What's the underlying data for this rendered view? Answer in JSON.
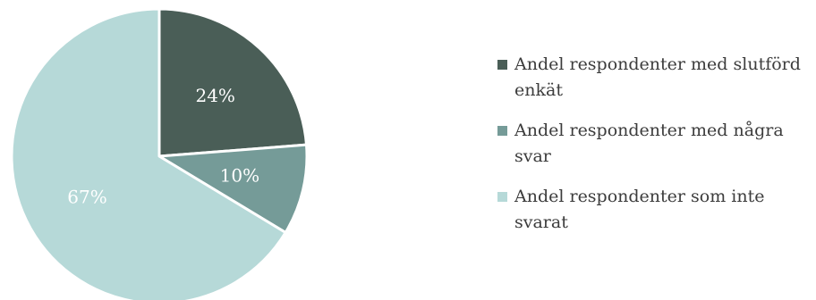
{
  "chart_data": {
    "type": "pie",
    "title": "",
    "legend_position": "right",
    "slices": [
      {
        "label": "Andel respondenter med slutförd enkät",
        "value": 24,
        "value_label": "24%",
        "color": "#4a5e57"
      },
      {
        "label": "Andel respondenter med några svar",
        "value": 10,
        "value_label": "10%",
        "color": "#759b98"
      },
      {
        "label": "Andel respondenter som inte svarat",
        "value": 67,
        "value_label": "67%",
        "color": "#b6d9d8"
      }
    ]
  }
}
